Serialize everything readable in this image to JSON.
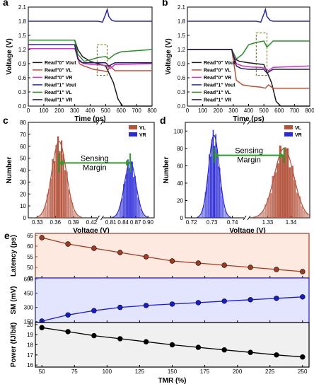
{
  "panel_labels": [
    "a",
    "b",
    "c",
    "d",
    "e"
  ],
  "chart_data": [
    {
      "id": "a",
      "type": "line",
      "xlabel": "Time (ps)",
      "ylabel": "Voltage (V)",
      "xlim": [
        0,
        800
      ],
      "ylim": [
        0,
        2.1
      ],
      "xticks": [
        "0",
        "100",
        "200",
        "300",
        "400",
        "500",
        "600",
        "700",
        "800"
      ],
      "yticks": [
        "0.0",
        "0.3",
        "0.6",
        "0.9",
        "1.2",
        "1.5",
        "1.8",
        "2.1"
      ],
      "legend_position": "center-left",
      "legend": [
        "Read\"0\" Vout",
        "Read\"0\" VL",
        "Read\"0\" VR",
        "Read\"1\" Vout",
        "Read\"1\" VL",
        "Read\"1\" VR"
      ],
      "series": [
        {
          "name": "Read\"0\" Vout",
          "color": "#1a1a1a",
          "x": [
            0,
            300,
            320,
            350,
            400,
            450,
            500,
            550,
            580,
            610,
            800
          ],
          "y": [
            1.4,
            1.4,
            1.2,
            1.05,
            0.95,
            0.9,
            0.85,
            0.5,
            0.15,
            0.0,
            0.0
          ]
        },
        {
          "name": "Read\"0\" VL",
          "color": "#b5533c",
          "x": [
            0,
            300,
            330,
            360,
            420,
            480,
            510,
            530,
            560,
            800
          ],
          "y": [
            1.3,
            1.3,
            0.9,
            0.85,
            0.78,
            0.75,
            0.73,
            0.85,
            0.75,
            0.75
          ]
        },
        {
          "name": "Read\"0\" VR",
          "color": "#cc33cc",
          "x": [
            0,
            300,
            330,
            360,
            420,
            480,
            510,
            530,
            560,
            800
          ],
          "y": [
            1.22,
            1.22,
            0.95,
            0.9,
            0.88,
            0.87,
            0.86,
            0.8,
            0.88,
            0.9
          ]
        },
        {
          "name": "Read\"1\" Vout",
          "color": "#2a2aa8",
          "x": [
            0,
            450,
            480,
            500,
            510,
            520,
            540,
            560,
            580,
            800
          ],
          "y": [
            1.8,
            1.8,
            1.78,
            1.95,
            2.05,
            1.9,
            1.82,
            1.8,
            1.8,
            1.8
          ]
        },
        {
          "name": "Read\"1\" VL",
          "color": "#2e8b2e",
          "x": [
            0,
            300,
            320,
            360,
            400,
            450,
            500,
            520,
            560,
            600,
            800
          ],
          "y": [
            1.4,
            1.4,
            1.1,
            0.95,
            0.98,
            1.03,
            1.05,
            1.0,
            1.1,
            1.15,
            1.2
          ]
        },
        {
          "name": "Read\"1\" VR",
          "color": "#2a1a5e",
          "x": [
            0,
            300,
            320,
            350,
            400,
            450,
            500,
            520,
            560,
            800
          ],
          "y": [
            1.3,
            1.3,
            1.0,
            0.92,
            0.92,
            0.92,
            0.92,
            0.85,
            0.92,
            0.92
          ]
        }
      ]
    },
    {
      "id": "b",
      "type": "line",
      "xlabel": "Time (ps)",
      "ylabel": "Voltage (V)",
      "xlim": [
        0,
        800
      ],
      "ylim": [
        0,
        2.1
      ],
      "xticks": [
        "0",
        "100",
        "200",
        "300",
        "400",
        "500",
        "600",
        "700",
        "800"
      ],
      "yticks": [
        "0.0",
        "0.3",
        "0.6",
        "0.9",
        "1.2",
        "1.5",
        "1.8",
        "2.1"
      ],
      "legend_position": "center-left",
      "legend": [
        "Read\"0\" Vout",
        "Read\"0\" VL",
        "Read\"0\" VR",
        "Read\"1\" Vout",
        "Read\"1\" VL",
        "Read\"1\" VR"
      ],
      "series": [
        {
          "name": "Read\"0\" Vout",
          "color": "#1a1a1a",
          "x": [
            0,
            290,
            310,
            340,
            400,
            450,
            500,
            550,
            580,
            610,
            800
          ],
          "y": [
            1.2,
            1.2,
            1.0,
            0.95,
            0.92,
            0.9,
            0.88,
            0.5,
            0.1,
            0.0,
            0.0
          ]
        },
        {
          "name": "Read\"0\" VL",
          "color": "#b5533c",
          "x": [
            0,
            290,
            320,
            360,
            420,
            480,
            510,
            530,
            560,
            800
          ],
          "y": [
            1.2,
            1.2,
            0.55,
            0.45,
            0.42,
            0.4,
            0.38,
            0.45,
            0.38,
            0.38
          ]
        },
        {
          "name": "Read\"0\" VR",
          "color": "#cc33cc",
          "x": [
            0,
            290,
            320,
            360,
            420,
            480,
            510,
            530,
            560,
            800
          ],
          "y": [
            1.2,
            1.2,
            0.9,
            0.85,
            0.83,
            0.82,
            0.8,
            0.75,
            0.82,
            0.85
          ]
        },
        {
          "name": "Read\"1\" Vout",
          "color": "#2a2aa8",
          "x": [
            0,
            450,
            480,
            500,
            510,
            520,
            540,
            560,
            580,
            800
          ],
          "y": [
            1.8,
            1.8,
            1.78,
            1.95,
            2.05,
            1.9,
            1.82,
            1.8,
            1.8,
            1.8
          ]
        },
        {
          "name": "Read\"1\" VL",
          "color": "#2e8b2e",
          "x": [
            0,
            290,
            320,
            360,
            400,
            450,
            500,
            520,
            560,
            600,
            800
          ],
          "y": [
            1.2,
            1.2,
            1.0,
            1.1,
            1.3,
            1.35,
            1.38,
            1.25,
            1.38,
            1.38,
            1.38
          ]
        },
        {
          "name": "Read\"1\" VR",
          "color": "#2a1a5e",
          "x": [
            0,
            290,
            320,
            350,
            400,
            450,
            500,
            520,
            560,
            800
          ],
          "y": [
            1.2,
            1.2,
            0.85,
            0.8,
            0.78,
            0.78,
            0.78,
            0.7,
            0.78,
            0.78
          ]
        }
      ]
    },
    {
      "id": "c",
      "type": "bar",
      "xlabel": "Voltage (V)",
      "ylabel": "Number",
      "ylim": [
        0,
        80
      ],
      "yticks": [
        "0",
        "10",
        "20",
        "30",
        "40",
        "50",
        "60",
        "70",
        "80"
      ],
      "xticks_left": [
        "0.33",
        "0.36",
        "0.39",
        "0.42"
      ],
      "xticks_right": [
        "0.81",
        "0.84",
        "0.87",
        "0.90"
      ],
      "x_break": true,
      "annotation": [
        "Sensing",
        "Margin"
      ],
      "legend": [
        "VL",
        "VR"
      ],
      "legend_position": "top-right",
      "series": [
        {
          "name": "VL",
          "color": "#b5533c",
          "mean": 0.366,
          "peak": 64
        },
        {
          "name": "VR",
          "color": "#2a2ad8",
          "mean": 0.857,
          "peak": 47
        }
      ]
    },
    {
      "id": "d",
      "type": "bar",
      "xlabel": "Voltage (V)",
      "ylabel": "Number",
      "ylim": [
        0,
        110
      ],
      "yticks": [
        "0",
        "20",
        "40",
        "60",
        "80",
        "100"
      ],
      "xticks_left": [
        "0.72",
        "0.73",
        "0.74"
      ],
      "xticks_right": [
        "1.33",
        "1.34"
      ],
      "x_break": true,
      "annotation": [
        "Sensing",
        "Margin"
      ],
      "legend": [
        "VL",
        "VR"
      ],
      "legend_position": "top-right",
      "series": [
        {
          "name": "VR",
          "color": "#2a2ad8",
          "mean": 0.731,
          "peak": 95
        },
        {
          "name": "VL",
          "color": "#b5533c",
          "mean": 1.337,
          "peak": 80
        }
      ]
    },
    {
      "id": "e",
      "type": "line",
      "xlabel": "TMR (%)",
      "x": [
        50,
        70,
        90,
        110,
        130,
        150,
        170,
        190,
        210,
        230,
        250
      ],
      "xlim": [
        45,
        255
      ],
      "xticks": [
        "50",
        "75",
        "100",
        "125",
        "150",
        "175",
        "200",
        "225",
        "250"
      ],
      "subplots": [
        {
          "ylabel": "Latency (ps)",
          "color": "#a13a20",
          "fill": "#fde9e0",
          "ylim": [
            45,
            66
          ],
          "yticks": [
            "45",
            "50",
            "55",
            "60",
            "65"
          ],
          "values": [
            64,
            61,
            59,
            57,
            55,
            53,
            52,
            51,
            50,
            49,
            48
          ]
        },
        {
          "ylabel": "SM (mV)",
          "color": "#1a1ad0",
          "fill": "#e2e5fd",
          "ylim": [
            140,
            610
          ],
          "yticks": [
            "150",
            "300",
            "450",
            "600"
          ],
          "values": [
            155,
            220,
            265,
            300,
            320,
            335,
            350,
            365,
            380,
            395,
            410
          ]
        },
        {
          "ylabel": "Power (fJ/bit)",
          "color": "#000000",
          "fill": "#f0f0f0",
          "ylim": [
            15.8,
            20.2
          ],
          "yticks": [
            "16",
            "17",
            "18",
            "19",
            "20"
          ],
          "values": [
            19.7,
            19.3,
            18.9,
            18.6,
            18.3,
            18.0,
            17.75,
            17.5,
            17.25,
            17.0,
            16.8
          ]
        }
      ]
    }
  ]
}
